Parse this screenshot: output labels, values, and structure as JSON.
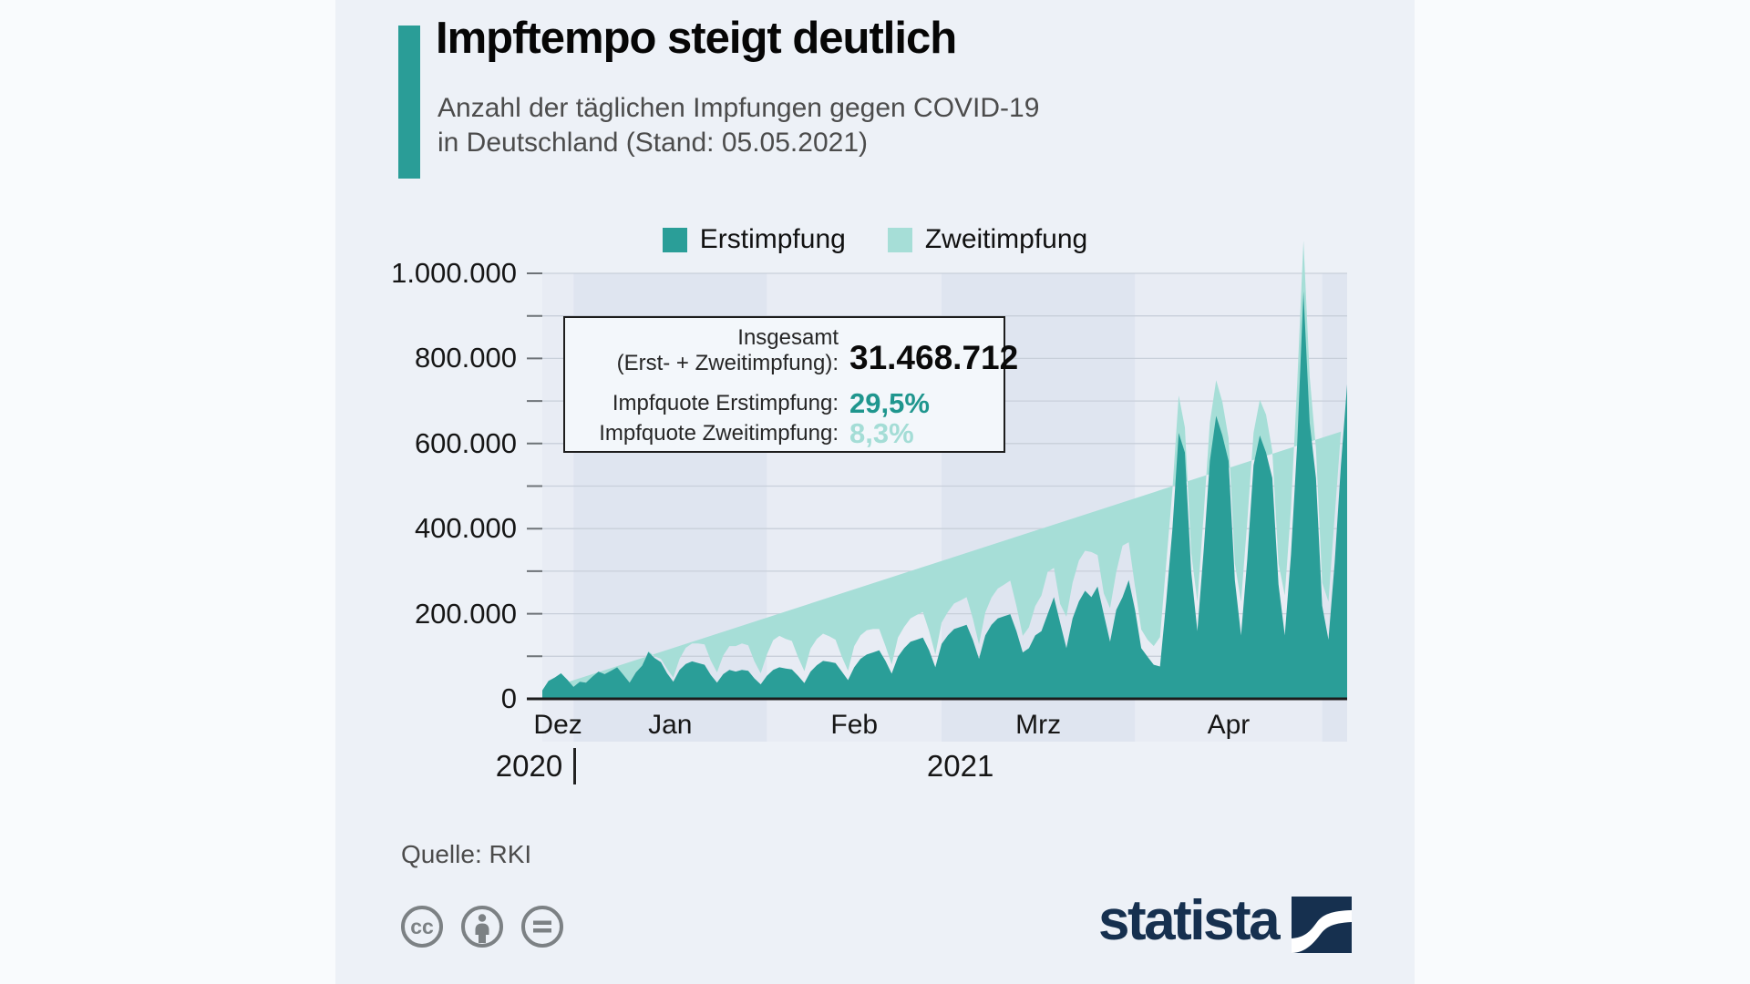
{
  "header": {
    "title": "Impftempo steigt deutlich",
    "subtitle_line1": "Anzahl der täglichen Impfungen gegen COVID-19",
    "subtitle_line2": "in Deutschland (Stand: 05.05.2021)"
  },
  "legend": {
    "items": [
      {
        "label": "Erstimpfung",
        "color": "#2a9e98"
      },
      {
        "label": "Zweitimpfung",
        "color": "#a6ded7"
      }
    ]
  },
  "infobox": {
    "total_label_line1": "Insgesamt",
    "total_label_line2": "(Erst- + Zweitimpfung):",
    "total_value": "31.468.712",
    "erst_label": "Impfquote Erstimpfung:",
    "erst_value": "29,5%",
    "zweit_label": "Impfquote Zweitimpfung:",
    "zweit_value": "8,3%"
  },
  "footer": {
    "source": "Quelle: RKI",
    "brand": "statista"
  },
  "colors": {
    "accent_teal": "#2a9d97",
    "erst_teal": "#2a9e98",
    "zweit_teal": "#a6ded7",
    "brand_navy": "#16304f"
  },
  "chart_data": {
    "type": "area",
    "stacked": true,
    "title": "Anzahl der täglichen Impfungen gegen COVID-19 in Deutschland (Stand: 05.05.2021)",
    "unit": "Impfungen pro Tag",
    "start_date": "2020-12-27",
    "end_date": "2021-05-05",
    "ylim": [
      0,
      1000000
    ],
    "grid_step": 100000,
    "legend_position": "top",
    "y_ticks": [
      {
        "value": 0,
        "label": "0"
      },
      {
        "value": 200000,
        "label": "200.000"
      },
      {
        "value": 400000,
        "label": "400.000"
      },
      {
        "value": 600000,
        "label": "600.000"
      },
      {
        "value": 800000,
        "label": "800.000"
      },
      {
        "value": 1000000,
        "label": "1.000.000"
      }
    ],
    "x_months": [
      {
        "label": "Dez",
        "start_index": 0,
        "end_index": 5,
        "shade": "light"
      },
      {
        "label": "Jan",
        "start_index": 5,
        "end_index": 36,
        "shade": "dark"
      },
      {
        "label": "Feb",
        "start_index": 36,
        "end_index": 64,
        "shade": "light"
      },
      {
        "label": "Mrz",
        "start_index": 64,
        "end_index": 95,
        "shade": "dark"
      },
      {
        "label": "Apr",
        "start_index": 95,
        "end_index": 125,
        "shade": "light"
      },
      {
        "label": "",
        "start_index": 125,
        "end_index": 129,
        "shade": "dark"
      }
    ],
    "years": [
      {
        "label": "2020"
      },
      {
        "label": "2021"
      }
    ],
    "year_split_index": 5,
    "series": [
      {
        "name": "Erstimpfung",
        "color": "#2a9e98",
        "values": [
          20000,
          42000,
          50000,
          60000,
          45000,
          28000,
          40000,
          38000,
          52000,
          64000,
          58000,
          66000,
          74000,
          56000,
          38000,
          62000,
          78000,
          110000,
          96000,
          86000,
          60000,
          40000,
          68000,
          82000,
          88000,
          84000,
          80000,
          56000,
          38000,
          58000,
          68000,
          64000,
          68000,
          66000,
          48000,
          34000,
          54000,
          68000,
          74000,
          71000,
          69000,
          54000,
          37000,
          64000,
          79000,
          89000,
          87000,
          84000,
          64000,
          44000,
          74000,
          94000,
          104000,
          109000,
          114000,
          89000,
          59000,
          99000,
          119000,
          134000,
          139000,
          144000,
          114000,
          74000,
          129000,
          149000,
          164000,
          169000,
          174000,
          139000,
          94000,
          149000,
          174000,
          189000,
          194000,
          199000,
          159000,
          109000,
          119000,
          149000,
          159000,
          199000,
          239000,
          179000,
          119000,
          189000,
          229000,
          254000,
          239000,
          264000,
          199000,
          134000,
          209000,
          239000,
          279000,
          209000,
          119000,
          99000,
          80000,
          76000,
          229000,
          399000,
          625000,
          579000,
          299000,
          159000,
          349000,
          559000,
          665000,
          619000,
          559000,
          279000,
          149000,
          329000,
          549000,
          619000,
          579000,
          519000,
          269000,
          149000,
          339000,
          599000,
          958000,
          649000,
          519000,
          219000,
          139000,
          319000,
          549000,
          739000
        ]
      },
      {
        "name": "Zweitimpfung",
        "color": "#a6ded7",
        "values": [
          0,
          0,
          0,
          0,
          0,
          0,
          0,
          0,
          0,
          0,
          0,
          0,
          0,
          0,
          0,
          0,
          0,
          2000,
          4000,
          8000,
          10000,
          10000,
          26000,
          38000,
          42000,
          46000,
          48000,
          34000,
          24000,
          44000,
          56000,
          60000,
          62000,
          60000,
          40000,
          26000,
          50000,
          70000,
          74000,
          70000,
          67000,
          44000,
          28000,
          54000,
          62000,
          64000,
          60000,
          55000,
          35000,
          22000,
          50000,
          55000,
          57000,
          55000,
          50000,
          35000,
          22000,
          45000,
          50000,
          55000,
          58000,
          60000,
          45000,
          30000,
          50000,
          55000,
          60000,
          62000,
          65000,
          50000,
          34000,
          54000,
          64000,
          70000,
          74000,
          79000,
          59000,
          39000,
          49000,
          69000,
          84000,
          99000,
          69000,
          44000,
          74000,
          84000,
          96000,
          94000,
          106000,
          74000,
          49000,
          79000,
          89000,
          121000,
          89000,
          54000,
          44000,
          40000,
          44000,
          69000,
          89000,
          92000,
          88000,
          59000,
          44000,
          69000,
          84000,
          90000,
          84000,
          79000,
          54000,
          39000,
          79000,
          89000,
          76000,
          84000,
          89000,
          64000,
          49000,
          94000,
          109000,
          142000,
          119000,
          109000,
          69000,
          54000,
          89000,
          109000,
          79000
        ]
      }
    ]
  }
}
